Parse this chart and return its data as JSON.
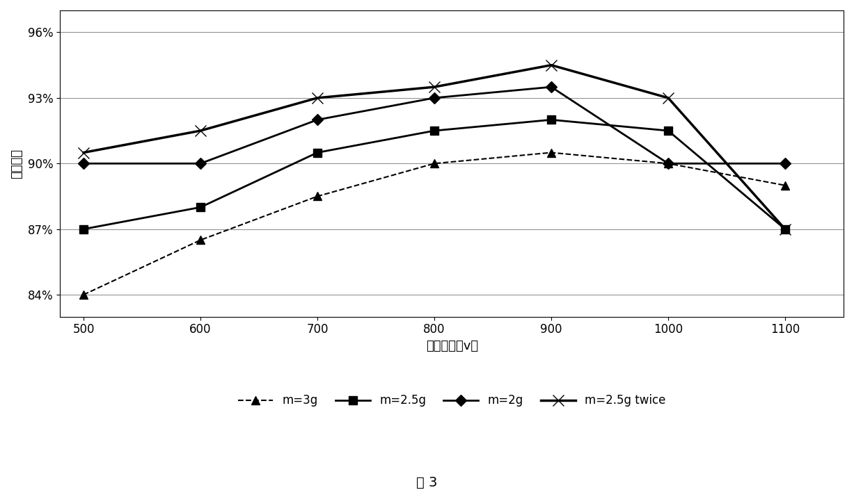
{
  "x": [
    500,
    600,
    700,
    800,
    900,
    1000,
    1100
  ],
  "series": {
    "m=3g": [
      84.0,
      86.5,
      88.5,
      90.0,
      90.5,
      90.0,
      89.0
    ],
    "m=2.5g": [
      87.0,
      88.0,
      90.5,
      91.5,
      92.0,
      91.5,
      87.0
    ],
    "m=2g": [
      90.0,
      90.0,
      92.0,
      93.0,
      93.5,
      90.0,
      90.0
    ],
    "m=2.5g twice": [
      90.5,
      91.5,
      93.0,
      93.5,
      94.5,
      93.0,
      87.0
    ]
  },
  "xlabel": "压制电压（v）",
  "ylabel": "相对密度",
  "yticks": [
    84,
    87,
    90,
    93,
    96
  ],
  "xlim": [
    480,
    1150
  ],
  "ylim": [
    83.0,
    97.0
  ],
  "figure_caption": "图 3",
  "legend_labels": [
    "m=3g",
    "m=2.5g",
    "m=2g",
    "m=2.5g twice"
  ],
  "line_colors": [
    "#000000",
    "#000000",
    "#000000",
    "#000000"
  ],
  "line_styles": [
    "--",
    "-",
    "-",
    "-"
  ],
  "markers": [
    "^",
    "s",
    "D",
    "x"
  ],
  "marker_sizes": [
    8,
    8,
    8,
    10
  ],
  "bg_color": "#ffffff",
  "grid_color": "#aaaaaa",
  "title_fontsize": 14,
  "axis_fontsize": 13,
  "tick_fontsize": 12,
  "legend_fontsize": 12
}
